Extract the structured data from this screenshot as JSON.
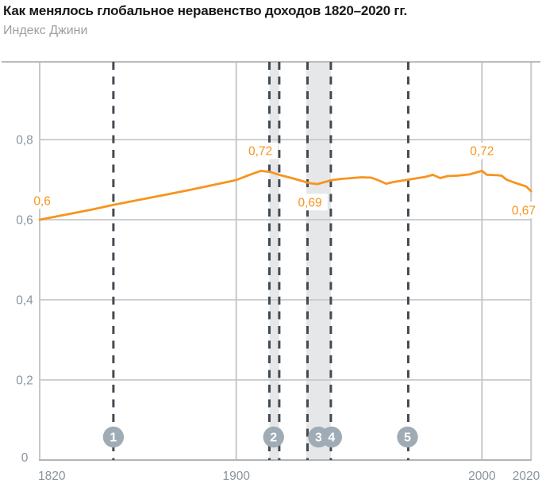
{
  "header": {
    "title": "Как менялось глобальное неравенство доходов 1820–2020 гг.",
    "subtitle": "Индекс Джини"
  },
  "chart_data": {
    "type": "line",
    "title": "Как менялось глобальное неравенство доходов 1820–2020 гг.",
    "ylabel": "Индекс Джини",
    "xlabel": "",
    "grid": true,
    "xlim": [
      1820,
      2020
    ],
    "ylim": [
      0,
      0.995
    ],
    "x_ticks": [
      {
        "year": 1820,
        "label": "1820",
        "align": "start"
      },
      {
        "year": 1900,
        "label": "1900",
        "align": "middle"
      },
      {
        "year": 2000,
        "label": "2000",
        "align": "middle"
      },
      {
        "year": 2020,
        "label": "2020",
        "align": "end"
      }
    ],
    "y_ticks": [
      {
        "value": 0,
        "label": "0"
      },
      {
        "value": 0.2,
        "label": "0,2"
      },
      {
        "value": 0.4,
        "label": "0,4"
      },
      {
        "value": 0.6,
        "label": "0,6"
      },
      {
        "value": 0.8,
        "label": "0,8"
      }
    ],
    "series": [
      {
        "name": "Индекс Джини",
        "points": [
          [
            1820,
            0.6
          ],
          [
            1831,
            0.613
          ],
          [
            1841,
            0.625
          ],
          [
            1850,
            0.637
          ],
          [
            1860,
            0.649
          ],
          [
            1870,
            0.661
          ],
          [
            1880,
            0.673
          ],
          [
            1890,
            0.686
          ],
          [
            1900,
            0.699
          ],
          [
            1905,
            0.711
          ],
          [
            1910,
            0.722
          ],
          [
            1914,
            0.719
          ],
          [
            1918,
            0.711
          ],
          [
            1922,
            0.705
          ],
          [
            1926,
            0.698
          ],
          [
            1930,
            0.691
          ],
          [
            1933,
            0.689
          ],
          [
            1936,
            0.694
          ],
          [
            1939,
            0.699
          ],
          [
            1943,
            0.702
          ],
          [
            1947,
            0.704
          ],
          [
            1951,
            0.706
          ],
          [
            1955,
            0.705
          ],
          [
            1958,
            0.698
          ],
          [
            1961,
            0.69
          ],
          [
            1964,
            0.694
          ],
          [
            1967,
            0.697
          ],
          [
            1970,
            0.7
          ],
          [
            1974,
            0.704
          ],
          [
            1977,
            0.707
          ],
          [
            1980,
            0.712
          ],
          [
            1983,
            0.704
          ],
          [
            1986,
            0.709
          ],
          [
            1990,
            0.71
          ],
          [
            1995,
            0.713
          ],
          [
            2000,
            0.722
          ],
          [
            2002,
            0.712
          ],
          [
            2006,
            0.711
          ],
          [
            2008,
            0.71
          ],
          [
            2010,
            0.7
          ],
          [
            2013,
            0.693
          ],
          [
            2016,
            0.687
          ],
          [
            2018,
            0.683
          ],
          [
            2020,
            0.671
          ]
        ]
      }
    ],
    "point_labels": [
      {
        "text": "0,6",
        "year": 1821,
        "value": 0.648
      },
      {
        "text": "0,72",
        "year": 1909.8,
        "value": 0.772
      },
      {
        "text": "0,69",
        "year": 1930,
        "value": 0.644
      },
      {
        "text": "0,72",
        "year": 2000,
        "value": 0.772
      },
      {
        "text": "0,67",
        "year": 2017,
        "value": 0.624
      }
    ],
    "shaded_bands": [
      {
        "from": 1913.5,
        "to": 1917.5
      },
      {
        "from": 1928.5,
        "to": 1938.5
      }
    ],
    "event_lines": [
      1850,
      1913.5,
      1917.5,
      1929,
      1938.5,
      1970
    ],
    "event_markers": [
      {
        "label": "1",
        "year": 1850
      },
      {
        "label": "2",
        "year": 1915.2
      },
      {
        "label": "3",
        "year": 1933.5
      },
      {
        "label": "4",
        "year": 1938.8
      },
      {
        "label": "5",
        "year": 1969.7
      }
    ],
    "colors": {
      "line": "#F7941E",
      "data_label": "#F7941E",
      "band": "#E6E7E9",
      "grid": "#C6C8CA",
      "top_border": "#B9BCBE",
      "axis": "#B2B5B7",
      "event_line": "#434A52",
      "marker_fill": "#9FACB6",
      "marker_text": "#FFFFFF",
      "tick_label": "#8B949C"
    }
  }
}
